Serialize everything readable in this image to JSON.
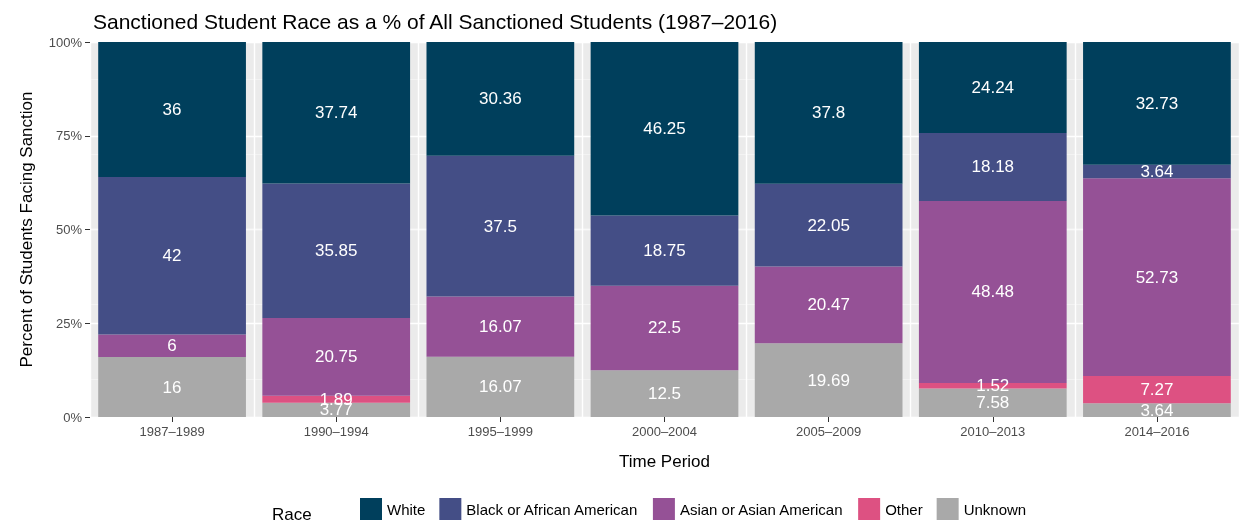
{
  "chart_data": {
    "type": "bar",
    "title": "Sanctioned Student Race as a % of All Sanctioned Students (1987–2016)",
    "xlabel": "Time Period",
    "ylabel": "Percent of Students Facing Sanction",
    "legend_title": "Race",
    "categories": [
      "1987–1989",
      "1990–1994",
      "1995–1999",
      "2000–2004",
      "2005–2009",
      "2010–2013",
      "2014–2016"
    ],
    "stacked": true,
    "data_labels": true,
    "grid": true,
    "legend": "bottom",
    "ylim": [
      0,
      100
    ],
    "yticks": [
      {
        "value": 0,
        "label": "0%"
      },
      {
        "value": 25,
        "label": "25%"
      },
      {
        "value": 50,
        "label": "50%"
      },
      {
        "value": 75,
        "label": "75%"
      },
      {
        "value": 100,
        "label": "100%"
      }
    ],
    "series": [
      {
        "name": "Unknown",
        "color": "#a9a9a9",
        "values": [
          16,
          3.77,
          16.07,
          12.5,
          19.69,
          7.58,
          3.64
        ]
      },
      {
        "name": "Other",
        "color": "#dd5182",
        "values": [
          null,
          1.89,
          null,
          null,
          null,
          1.52,
          7.27
        ]
      },
      {
        "name": "Asian or Asian American",
        "color": "#955196",
        "values": [
          6,
          20.75,
          16.07,
          22.5,
          20.47,
          48.48,
          52.73
        ]
      },
      {
        "name": "Black or African American",
        "color": "#444e86",
        "values": [
          42,
          35.85,
          37.5,
          18.75,
          22.05,
          18.18,
          3.64
        ]
      },
      {
        "name": "White",
        "color": "#003f5c",
        "values": [
          36,
          37.74,
          30.36,
          46.25,
          37.8,
          24.24,
          32.73
        ]
      }
    ]
  }
}
